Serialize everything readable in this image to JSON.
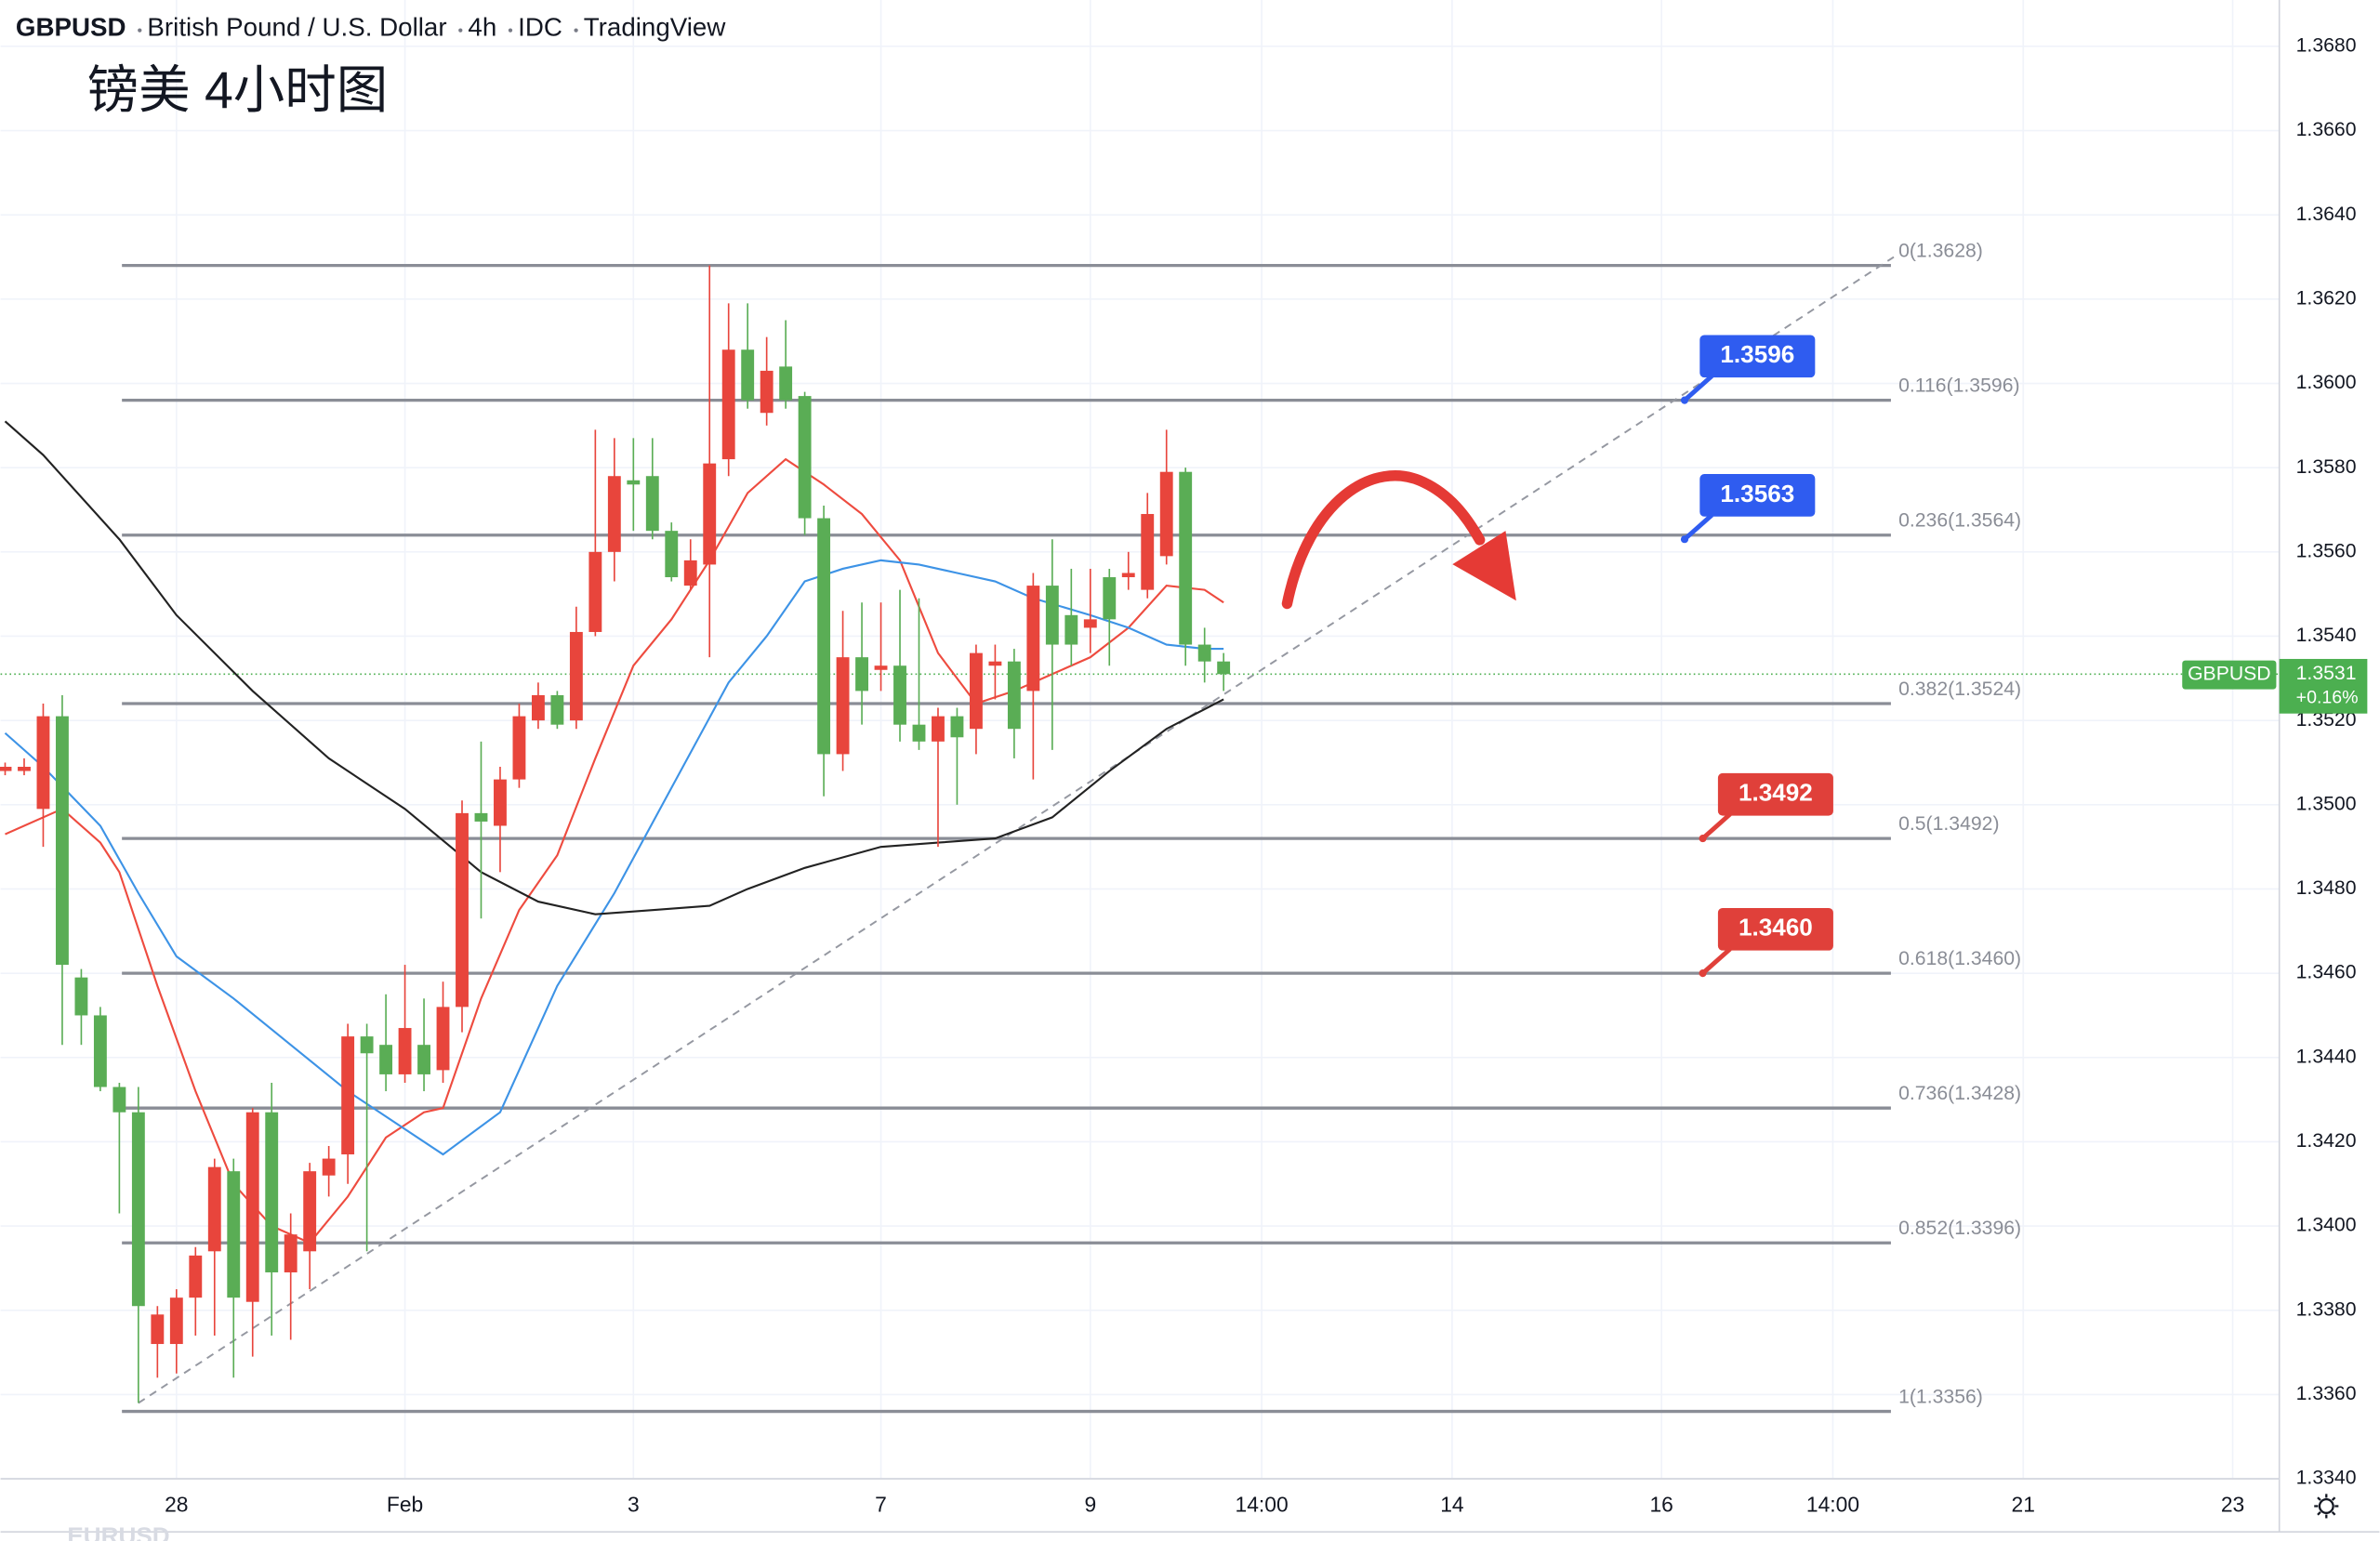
{
  "chart_data": {
    "type": "candlestick",
    "header": [
      "GBPUSD",
      "British Pound / U.S. Dollar",
      "4h",
      "IDC",
      "TradingView"
    ],
    "title": "镑美 4小时图",
    "watermark": "EURUSD",
    "up_color": "#e8453c",
    "down_color": "#5aad55",
    "candles": {
      "open": [
        1.3508,
        1.3508,
        1.3499,
        1.3521,
        1.3459,
        1.345,
        1.3433,
        1.3427,
        1.3372,
        1.3372,
        1.3383,
        1.3394,
        1.3413,
        1.3382,
        1.3427,
        1.3389,
        1.3394,
        1.3412,
        1.3417,
        1.3445,
        1.3443,
        1.3436,
        1.3443,
        1.3437,
        1.3452,
        1.3498,
        1.3495,
        1.3506,
        1.352,
        1.3526,
        1.352,
        1.3541,
        1.356,
        1.3577,
        1.3578,
        1.3565,
        1.3552,
        1.3557,
        1.3582,
        1.3608,
        1.3593,
        1.3604,
        1.3597,
        1.3568,
        1.3512,
        1.3535,
        1.3532,
        1.3533,
        1.3519,
        1.3515,
        1.3521,
        1.3518,
        1.3533,
        1.3534,
        1.3527,
        1.3552,
        1.3545,
        1.3542,
        1.3554,
        1.3554,
        1.3551,
        1.3559,
        1.3579,
        1.3538,
        1.3534
      ],
      "high": [
        1.351,
        1.3511,
        1.3524,
        1.3526,
        1.3461,
        1.3452,
        1.3434,
        1.3433,
        1.3381,
        1.3385,
        1.3395,
        1.3416,
        1.3416,
        1.3428,
        1.3434,
        1.3403,
        1.3415,
        1.3419,
        1.3448,
        1.3448,
        1.3455,
        1.3462,
        1.3454,
        1.3458,
        1.3501,
        1.3515,
        1.3509,
        1.3524,
        1.3529,
        1.3527,
        1.3547,
        1.3589,
        1.3587,
        1.3587,
        1.3587,
        1.3567,
        1.3563,
        1.3628,
        1.3619,
        1.3619,
        1.3611,
        1.3615,
        1.3598,
        1.3571,
        1.3546,
        1.3548,
        1.3548,
        1.3551,
        1.3549,
        1.3523,
        1.3523,
        1.3538,
        1.3538,
        1.3537,
        1.3555,
        1.3563,
        1.3556,
        1.3556,
        1.3556,
        1.356,
        1.3574,
        1.3589,
        1.358,
        1.3542,
        1.3536
      ],
      "low": [
        1.3507,
        1.3507,
        1.349,
        1.3443,
        1.3443,
        1.3432,
        1.3403,
        1.3358,
        1.3364,
        1.3365,
        1.3374,
        1.3374,
        1.3364,
        1.3369,
        1.3374,
        1.3373,
        1.3385,
        1.3407,
        1.341,
        1.3394,
        1.3432,
        1.3434,
        1.3432,
        1.3434,
        1.3446,
        1.3473,
        1.3484,
        1.3504,
        1.3518,
        1.3518,
        1.3518,
        1.354,
        1.3553,
        1.3565,
        1.3563,
        1.3553,
        1.3551,
        1.3535,
        1.3578,
        1.3594,
        1.359,
        1.3594,
        1.3564,
        1.3502,
        1.3508,
        1.3519,
        1.3527,
        1.3515,
        1.3513,
        1.349,
        1.35,
        1.3512,
        1.3525,
        1.3511,
        1.3506,
        1.3513,
        1.3533,
        1.3536,
        1.3533,
        1.3551,
        1.3549,
        1.3557,
        1.3533,
        1.3529,
        1.3527
      ],
      "close": [
        1.3509,
        1.3509,
        1.3521,
        1.3462,
        1.345,
        1.3433,
        1.3427,
        1.3381,
        1.3379,
        1.3383,
        1.3393,
        1.3414,
        1.3383,
        1.3427,
        1.3389,
        1.3398,
        1.3413,
        1.3416,
        1.3445,
        1.3441,
        1.3436,
        1.3447,
        1.3436,
        1.3452,
        1.3498,
        1.3496,
        1.3506,
        1.3521,
        1.3526,
        1.3519,
        1.3541,
        1.356,
        1.3578,
        1.3576,
        1.3565,
        1.3554,
        1.3558,
        1.3581,
        1.3608,
        1.3596,
        1.3603,
        1.3596,
        1.3568,
        1.3512,
        1.3535,
        1.3527,
        1.3533,
        1.3519,
        1.3515,
        1.3521,
        1.3516,
        1.3536,
        1.3534,
        1.3518,
        1.3552,
        1.3538,
        1.3538,
        1.3544,
        1.3544,
        1.3555,
        1.3569,
        1.3579,
        1.3538,
        1.3534,
        1.3531
      ]
    },
    "series": [
      {
        "color": "#ee4b3f",
        "x": [
          0,
          3,
          5,
          6,
          8,
          10,
          12,
          14,
          16,
          18,
          20,
          22,
          23,
          25,
          27,
          29,
          31,
          33,
          35,
          37,
          39,
          41,
          43,
          45,
          47,
          49,
          51,
          53,
          55,
          57,
          59,
          61,
          63,
          64
        ],
        "values": [
          1.3493,
          1.3499,
          1.3491,
          1.3484,
          1.3457,
          1.3432,
          1.341,
          1.34,
          1.3396,
          1.3407,
          1.3421,
          1.3427,
          1.3428,
          1.3454,
          1.3475,
          1.3488,
          1.3511,
          1.3533,
          1.3544,
          1.3558,
          1.3574,
          1.3582,
          1.3576,
          1.3569,
          1.3558,
          1.3536,
          1.3524,
          1.3527,
          1.3531,
          1.3535,
          1.3542,
          1.3552,
          1.3551,
          1.3548
        ]
      },
      {
        "color": "#3d93e6",
        "x": [
          0,
          2,
          5,
          7,
          9,
          12,
          15,
          18,
          21,
          23,
          26,
          29,
          32,
          35,
          38,
          40,
          42,
          44,
          46,
          48,
          50,
          52,
          54,
          57,
          59,
          61,
          63,
          64
        ],
        "values": [
          1.3517,
          1.3509,
          1.3495,
          1.3479,
          1.3464,
          1.3454,
          1.3443,
          1.3432,
          1.3423,
          1.3417,
          1.3427,
          1.3457,
          1.3479,
          1.3504,
          1.3529,
          1.354,
          1.3553,
          1.3556,
          1.3558,
          1.3557,
          1.3555,
          1.3553,
          1.3549,
          1.3545,
          1.3542,
          1.3538,
          1.3537,
          1.3537
        ]
      },
      {
        "color": "#222222",
        "x": [
          0,
          2,
          6,
          9,
          13,
          17,
          21,
          25,
          28,
          31,
          34,
          37,
          39,
          42,
          46,
          49,
          52,
          55,
          58,
          61,
          64
        ],
        "values": [
          1.3591,
          1.3583,
          1.3563,
          1.3545,
          1.3527,
          1.3511,
          1.3499,
          1.3484,
          1.3477,
          1.3474,
          1.3475,
          1.3476,
          1.348,
          1.3485,
          1.349,
          1.3491,
          1.3492,
          1.3497,
          1.3508,
          1.3518,
          1.3525
        ]
      }
    ],
    "fib_levels": [
      {
        "value": 1.3628,
        "label": "0(1.3628)"
      },
      {
        "value": 1.3596,
        "label": "0.116(1.3596)"
      },
      {
        "value": 1.3564,
        "label": "0.236(1.3564)"
      },
      {
        "value": 1.3524,
        "label": "0.382(1.3524)"
      },
      {
        "value": 1.3492,
        "label": "0.5(1.3492)"
      },
      {
        "value": 1.346,
        "label": "0.618(1.3460)"
      },
      {
        "value": 1.3428,
        "label": "0.736(1.3428)"
      },
      {
        "value": 1.3396,
        "label": "0.852(1.3396)"
      },
      {
        "value": 1.3356,
        "label": "1(1.3356)"
      }
    ],
    "trendline": {
      "x": [
        7,
        99.2
      ],
      "y": [
        1.3358,
        1.363
      ]
    },
    "callouts": [
      {
        "value": 1.3596,
        "label": "1.3596",
        "color": "#2f5cf0"
      },
      {
        "value": 1.3563,
        "label": "1.3563",
        "color": "#2f5cf0"
      },
      {
        "value": 1.3492,
        "label": "1.3492",
        "color": "#e0403a"
      },
      {
        "value": 1.346,
        "label": "1.3460",
        "color": "#e0403a"
      }
    ],
    "last_price": {
      "symbol": "GBPUSD",
      "value": 1.3531,
      "change": "+0.16%",
      "color": "#4caf50"
    },
    "xlim": [
      -0.24,
      119.45
    ],
    "xticks": [
      {
        "value": 9,
        "label": "28"
      },
      {
        "value": 21,
        "label": "Feb"
      },
      {
        "value": 33,
        "label": "3"
      },
      {
        "value": 46,
        "label": "7"
      },
      {
        "value": 57,
        "label": "9"
      },
      {
        "value": 66,
        "label": "14:00"
      },
      {
        "value": 76,
        "label": "14"
      },
      {
        "value": 87,
        "label": "16"
      },
      {
        "value": 96,
        "label": "14:00"
      },
      {
        "value": 106,
        "label": "21"
      },
      {
        "value": 117,
        "label": "23"
      }
    ],
    "ylim": [
      1.334,
      1.3691
    ],
    "yticks": [
      {
        "value": 1.334,
        "label": "1.3340"
      },
      {
        "value": 1.336,
        "label": "1.3360"
      },
      {
        "value": 1.338,
        "label": "1.3380"
      },
      {
        "value": 1.34,
        "label": "1.3400"
      },
      {
        "value": 1.342,
        "label": "1.3420"
      },
      {
        "value": 1.344,
        "label": "1.3440"
      },
      {
        "value": 1.346,
        "label": "1.3460"
      },
      {
        "value": 1.348,
        "label": "1.3480"
      },
      {
        "value": 1.35,
        "label": "1.3500"
      },
      {
        "value": 1.352,
        "label": "1.3520"
      },
      {
        "value": 1.354,
        "label": "1.3540"
      },
      {
        "value": 1.356,
        "label": "1.3560"
      },
      {
        "value": 1.358,
        "label": "1.3580"
      },
      {
        "value": 1.36,
        "label": "1.3600"
      },
      {
        "value": 1.362,
        "label": "1.3620"
      },
      {
        "value": 1.364,
        "label": "1.3640"
      },
      {
        "value": 1.366,
        "label": "1.3660"
      },
      {
        "value": 1.368,
        "label": "1.3680"
      }
    ],
    "grid": true
  }
}
